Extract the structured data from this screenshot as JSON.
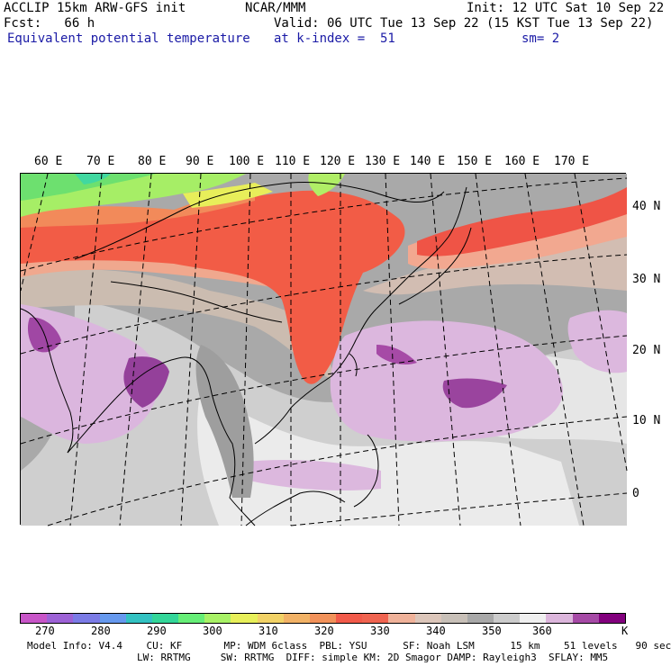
{
  "header": {
    "line1_left": "ACCLIP 15km ARW-GFS init",
    "line1_mid": "NCAR/MMM",
    "line1_right": "Init: 12 UTC Sat 10 Sep 22",
    "line2_left": "Fcst:   66 h",
    "line2_right": "Valid: 06 UTC Tue 13 Sep 22 (15 KST Tue 13 Sep 22)",
    "line3_left": "Equivalent potential temperature",
    "line3_mid": "at k-index =  51",
    "line3_right": "sm= 2"
  },
  "map": {
    "lon_labels": [
      "60 E",
      "70 E",
      "80 E",
      "90 E",
      "100 E",
      "110 E",
      "120 E",
      "130 E",
      "140 E",
      "150 E",
      "160 E",
      "170 E"
    ],
    "lat_labels": [
      "40 N",
      "30 N",
      "20 N",
      "10 N",
      "0"
    ]
  },
  "colorbar": {
    "colors": [
      "#c855c8",
      "#9d62d6",
      "#7b7be6",
      "#6699ee",
      "#33c2c2",
      "#33d699",
      "#66ee77",
      "#a8f266",
      "#e8f05a",
      "#f2d266",
      "#f2b266",
      "#f2925a",
      "#f25a4a",
      "#f06450",
      "#f0b29a",
      "#dcc6ba",
      "#c8c0b8",
      "#a8a8a8",
      "#cccccc",
      "#f0f0f0",
      "#dcb6dc",
      "#a64aa6",
      "#82007d"
    ],
    "labels": [
      "270",
      "280",
      "290",
      "300",
      "310",
      "320",
      "330",
      "340",
      "350",
      "360"
    ],
    "unit": "K"
  },
  "footer": {
    "line1": "Model Info: V4.4    CU: KF       MP: WDM 6class  PBL: YSU      SF: Noah LSM      15 km    51 levels   90 sec",
    "line2": "LW: RRTMG     SW: RRTMG  DIFF: simple KM: 2D Smagor DAMP: Rayleigh3  SFLAY: MM5"
  }
}
